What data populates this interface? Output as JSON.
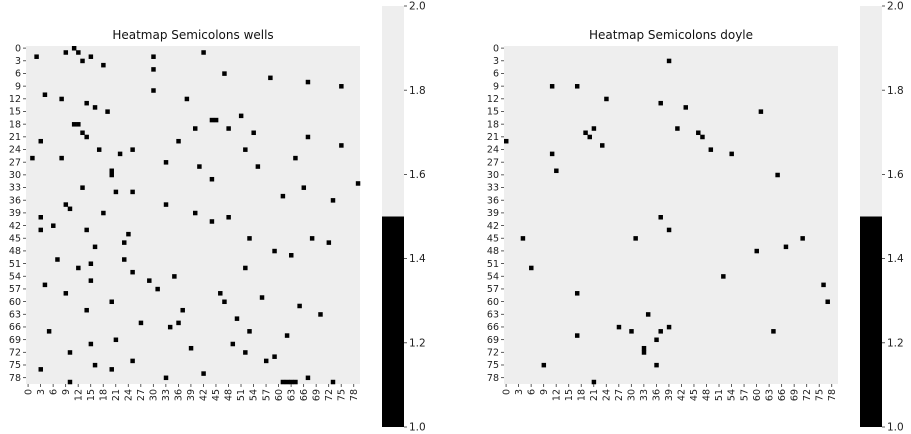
{
  "chart_data": [
    {
      "type": "heatmap",
      "title": "Heatmap Semicolons wells",
      "rows": 80,
      "cols": 80,
      "ytick_labels": [
        "0",
        "3",
        "6",
        "9",
        "12",
        "15",
        "18",
        "21",
        "24",
        "27",
        "30",
        "33",
        "36",
        "39",
        "42",
        "45",
        "48",
        "51",
        "54",
        "57",
        "60",
        "63",
        "66",
        "69",
        "72",
        "75",
        "78"
      ],
      "xtick_labels": [
        "0",
        "3",
        "6",
        "9",
        "12",
        "15",
        "18",
        "21",
        "24",
        "27",
        "30",
        "33",
        "36",
        "39",
        "42",
        "45",
        "48",
        "51",
        "54",
        "57",
        "60",
        "63",
        "66",
        "69",
        "72",
        "75",
        "78"
      ],
      "value_range": [
        1.0,
        2.0
      ],
      "background_value": 2.0,
      "colorbar": {
        "ticks": [
          "2.0",
          "1.8",
          "1.6",
          "1.4",
          "1.2",
          "1.0"
        ],
        "colors": {
          "high": "#eeeeee",
          "low": "#000000"
        }
      },
      "cells_value_1": [
        [
          0,
          11
        ],
        [
          1,
          9
        ],
        [
          1,
          12
        ],
        [
          2,
          2
        ],
        [
          2,
          15
        ],
        [
          2,
          30
        ],
        [
          3,
          13
        ],
        [
          4,
          18
        ],
        [
          1,
          42
        ],
        [
          5,
          30
        ],
        [
          6,
          47
        ],
        [
          7,
          58
        ],
        [
          8,
          67
        ],
        [
          9,
          75
        ],
        [
          10,
          30
        ],
        [
          11,
          4
        ],
        [
          12,
          8
        ],
        [
          12,
          38
        ],
        [
          13,
          14
        ],
        [
          14,
          16
        ],
        [
          15,
          19
        ],
        [
          16,
          51
        ],
        [
          17,
          44
        ],
        [
          17,
          45
        ],
        [
          18,
          11
        ],
        [
          18,
          12
        ],
        [
          19,
          40
        ],
        [
          19,
          48
        ],
        [
          20,
          54
        ],
        [
          21,
          67
        ],
        [
          22,
          3
        ],
        [
          23,
          75
        ],
        [
          24,
          17
        ],
        [
          24,
          52
        ],
        [
          25,
          22
        ],
        [
          26,
          1
        ],
        [
          26,
          8
        ],
        [
          27,
          33
        ],
        [
          28,
          41
        ],
        [
          28,
          55
        ],
        [
          29,
          20
        ],
        [
          30,
          20
        ],
        [
          31,
          44
        ],
        [
          32,
          79
        ],
        [
          33,
          13
        ],
        [
          33,
          66
        ],
        [
          34,
          21
        ],
        [
          35,
          61
        ],
        [
          36,
          73
        ],
        [
          37,
          9
        ],
        [
          38,
          10
        ],
        [
          39,
          18
        ],
        [
          39,
          40
        ],
        [
          40,
          3
        ],
        [
          41,
          44
        ],
        [
          42,
          6
        ],
        [
          43,
          14
        ],
        [
          44,
          24
        ],
        [
          45,
          53
        ],
        [
          46,
          23
        ],
        [
          47,
          16
        ],
        [
          48,
          59
        ],
        [
          49,
          63
        ],
        [
          50,
          7
        ],
        [
          51,
          15
        ],
        [
          52,
          12
        ],
        [
          53,
          25
        ],
        [
          54,
          35
        ],
        [
          55,
          29
        ],
        [
          56,
          4
        ],
        [
          57,
          31
        ],
        [
          58,
          46
        ],
        [
          59,
          56
        ],
        [
          60,
          20
        ],
        [
          61,
          65
        ],
        [
          62,
          37
        ],
        [
          63,
          70
        ],
        [
          64,
          50
        ],
        [
          65,
          27
        ],
        [
          66,
          34
        ],
        [
          67,
          5
        ],
        [
          68,
          62
        ],
        [
          69,
          21
        ],
        [
          70,
          49
        ],
        [
          71,
          39
        ],
        [
          72,
          10
        ],
        [
          73,
          59
        ],
        [
          74,
          57
        ],
        [
          75,
          16
        ],
        [
          76,
          3
        ],
        [
          77,
          42
        ],
        [
          78,
          67
        ],
        [
          79,
          10
        ],
        [
          79,
          61
        ],
        [
          79,
          62
        ],
        [
          79,
          63
        ],
        [
          79,
          64
        ],
        [
          79,
          73
        ],
        [
          20,
          13
        ],
        [
          21,
          14
        ],
        [
          22,
          36
        ],
        [
          24,
          25
        ],
        [
          26,
          64
        ],
        [
          34,
          25
        ],
        [
          37,
          33
        ],
        [
          45,
          68
        ],
        [
          50,
          23
        ],
        [
          55,
          15
        ],
        [
          58,
          9
        ],
        [
          60,
          47
        ],
        [
          62,
          14
        ],
        [
          65,
          36
        ],
        [
          67,
          53
        ],
        [
          70,
          15
        ],
        [
          72,
          52
        ],
        [
          74,
          25
        ],
        [
          76,
          20
        ],
        [
          78,
          33
        ],
        [
          40,
          48
        ],
        [
          43,
          3
        ],
        [
          46,
          72
        ],
        [
          52,
          52
        ]
      ]
    },
    {
      "type": "heatmap",
      "title": "Heatmap Semicolons doyle",
      "rows": 80,
      "cols": 80,
      "ytick_labels": [
        "0",
        "3",
        "6",
        "9",
        "12",
        "15",
        "18",
        "21",
        "24",
        "27",
        "30",
        "33",
        "36",
        "39",
        "42",
        "45",
        "48",
        "51",
        "54",
        "57",
        "60",
        "63",
        "66",
        "69",
        "72",
        "75",
        "78"
      ],
      "xtick_labels": [
        "0",
        "3",
        "6",
        "9",
        "12",
        "15",
        "18",
        "21",
        "24",
        "27",
        "30",
        "33",
        "36",
        "39",
        "42",
        "45",
        "48",
        "51",
        "54",
        "57",
        "60",
        "63",
        "66",
        "69",
        "72",
        "75",
        "78"
      ],
      "value_range": [
        1.0,
        2.0
      ],
      "background_value": 2.0,
      "colorbar": {
        "ticks": [
          "2.0",
          "1.8",
          "1.6",
          "1.4",
          "1.2",
          "1.0"
        ],
        "colors": {
          "high": "#eeeeee",
          "low": "#000000"
        }
      },
      "cells_value_1": [
        [
          3,
          39
        ],
        [
          9,
          11
        ],
        [
          9,
          17
        ],
        [
          12,
          24
        ],
        [
          13,
          37
        ],
        [
          14,
          43
        ],
        [
          15,
          61
        ],
        [
          19,
          21
        ],
        [
          19,
          41
        ],
        [
          20,
          19
        ],
        [
          20,
          46
        ],
        [
          21,
          20
        ],
        [
          21,
          47
        ],
        [
          22,
          0
        ],
        [
          23,
          23
        ],
        [
          24,
          49
        ],
        [
          25,
          11
        ],
        [
          25,
          54
        ],
        [
          29,
          12
        ],
        [
          30,
          65
        ],
        [
          40,
          37
        ],
        [
          43,
          39
        ],
        [
          45,
          4
        ],
        [
          45,
          31
        ],
        [
          45,
          71
        ],
        [
          47,
          67
        ],
        [
          48,
          60
        ],
        [
          52,
          6
        ],
        [
          54,
          52
        ],
        [
          56,
          76
        ],
        [
          58,
          17
        ],
        [
          60,
          77
        ],
        [
          63,
          34
        ],
        [
          66,
          27
        ],
        [
          67,
          30
        ],
        [
          67,
          37
        ],
        [
          66,
          39
        ],
        [
          68,
          17
        ],
        [
          69,
          36
        ],
        [
          71,
          33
        ],
        [
          72,
          33
        ],
        [
          75,
          9
        ],
        [
          75,
          36
        ],
        [
          67,
          64
        ],
        [
          79,
          21
        ]
      ]
    }
  ]
}
